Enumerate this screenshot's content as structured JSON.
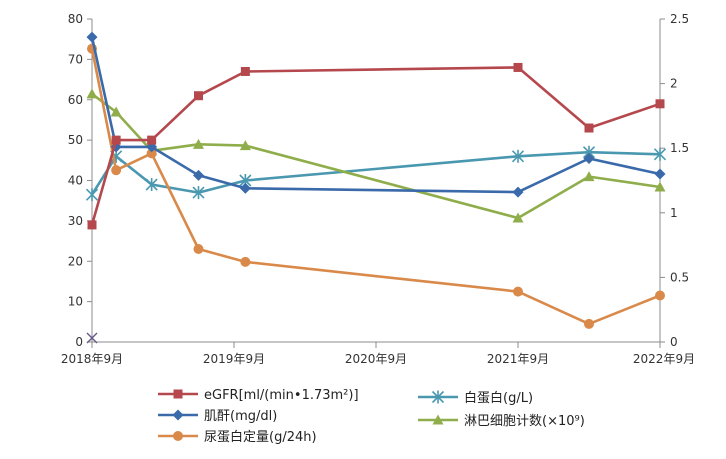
{
  "chart_data": {
    "type": "line",
    "title": "",
    "x_ticks": [
      "2018年9月",
      "2019年9月",
      "2020年9月",
      "2021年9月",
      "2022年9月"
    ],
    "y_left": {
      "min": 0,
      "max": 80,
      "ticks": [
        0,
        10,
        20,
        30,
        40,
        50,
        60,
        70,
        80
      ]
    },
    "y_right": {
      "min": 0,
      "max": 2.5,
      "ticks": [
        "0",
        "0.5",
        "1",
        "1.5",
        "2",
        "2.5"
      ],
      "tick_values": [
        0,
        0.5,
        1,
        1.5,
        2,
        2.5
      ]
    },
    "x_unit": "years",
    "grid": false,
    "legend_position": "bottom",
    "series": [
      {
        "key": "egfr",
        "name": "eGFR[ml/(min•1.73m²)]",
        "color": "#b5484d",
        "marker": "square",
        "axis": "left",
        "x": [
          2018.75,
          2018.92,
          2019.17,
          2019.5,
          2019.83,
          2021.75,
          2022.25,
          2022.75
        ],
        "values": [
          29,
          50,
          50,
          61,
          67,
          68,
          53,
          59
        ]
      },
      {
        "key": "creatinine",
        "name": "肌酐(mg/dl)",
        "color": "#3a6aaa",
        "marker": "diamond",
        "axis": "right",
        "x": [
          2018.75,
          2018.92,
          2019.17,
          2019.5,
          2019.83,
          2021.75,
          2022.25,
          2022.75
        ],
        "values": [
          2.36,
          1.51,
          1.51,
          1.29,
          1.19,
          1.16,
          1.42,
          1.3
        ]
      },
      {
        "key": "urine_protein",
        "name": "尿蛋白定量(g/24h)",
        "color": "#d98a4a",
        "marker": "circle",
        "axis": "right",
        "x": [
          2018.75,
          2018.92,
          2019.17,
          2019.5,
          2019.83,
          2021.75,
          2022.25,
          2022.75
        ],
        "values": [
          2.27,
          1.33,
          1.46,
          0.72,
          0.62,
          0.39,
          0.14,
          0.36
        ]
      },
      {
        "key": "albumin",
        "name": "白蛋白(g/L)",
        "color": "#4a98b0",
        "marker": "star",
        "axis": "left",
        "x": [
          2018.75,
          2018.92,
          2019.17,
          2019.5,
          2019.83,
          2021.75,
          2022.25,
          2022.75
        ],
        "values": [
          36.5,
          46,
          39,
          37,
          40,
          46,
          47,
          46.5
        ]
      },
      {
        "key": "lymphocyte",
        "name": "淋巴细胞计数(×10⁹)",
        "color": "#8fae4b",
        "marker": "triangle",
        "axis": "right",
        "x": [
          2018.75,
          2018.92,
          2019.17,
          2019.5,
          2019.83,
          2021.75,
          2022.25,
          2022.75
        ],
        "values": [
          1.92,
          1.78,
          1.48,
          1.53,
          1.52,
          0.96,
          1.28,
          1.2
        ]
      }
    ],
    "extra_marker": {
      "name": "x-marker",
      "marker": "x",
      "color": "#6a5a8a",
      "x": 2018.75,
      "value": 1,
      "axis": "left"
    }
  }
}
